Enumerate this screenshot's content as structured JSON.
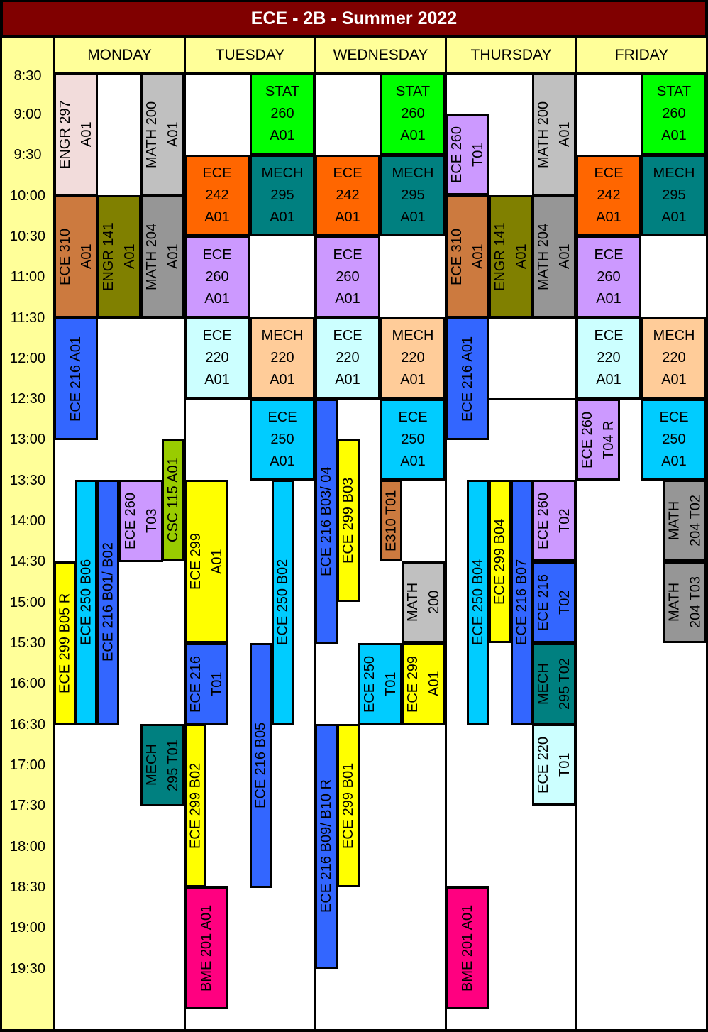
{
  "title": "ECE - 2B - Summer 2022",
  "days": [
    "MONDAY",
    "TUESDAY",
    "WEDNESDAY",
    "THURSDAY",
    "FRIDAY"
  ],
  "times": [
    "8:30",
    "9:00",
    "9:30",
    "10:00",
    "10:30",
    "11:00",
    "11:30",
    "12:00",
    "12:30",
    "13:00",
    "13:30",
    "14:00",
    "14:30",
    "15:00",
    "15:30",
    "16:00",
    "16:30",
    "17:00",
    "17:30",
    "18:00",
    "18:30",
    "19:00",
    "19:30"
  ],
  "colors": {
    "title_bg": "#800000",
    "header_bg": "#ffff99",
    "ecc_pink": "#f2dcdb",
    "gray_light": "#c0c0c0",
    "gray": "#969696",
    "green": "#00ff00",
    "orange": "#ff6600",
    "teal": "#008080",
    "lavender": "#cc99ff",
    "brown": "#cc7a3f",
    "olive": "#808000",
    "blue": "#3366ff",
    "cyan_light": "#ccffff",
    "peach": "#ffcc99",
    "sky": "#00ccff",
    "yellow": "#ffff00",
    "lime": "#99cc00",
    "magenta": "#ff0080"
  },
  "events": [
    {
      "text": "ENGR 297\nA01",
      "orient": "v",
      "color": "#f2dcdb"
    },
    {
      "text": "MATH 200\nA01",
      "orient": "v",
      "color": "#c0c0c0"
    },
    {
      "text": "ECE 310\nA01",
      "orient": "v",
      "color": "#cc7a3f"
    },
    {
      "text": "ENGR 141\nA01",
      "orient": "v",
      "color": "#808000"
    },
    {
      "text": "MATH 204\nA01",
      "orient": "v",
      "color": "#969696"
    },
    {
      "text": "ECE 216  A01",
      "orient": "v",
      "color": "#3366ff"
    },
    {
      "text": "CSC 115 A01",
      "orient": "v",
      "color": "#99cc00"
    },
    {
      "text": "ECE 260\nT03",
      "orient": "v",
      "color": "#cc99ff"
    },
    {
      "text": "ECE 299 B05 R",
      "orient": "v",
      "color": "#ffff00"
    },
    {
      "text": "ECE 250 B06",
      "orient": "v",
      "color": "#00ccff"
    },
    {
      "text": "ECE 216 B01/ B02",
      "orient": "v",
      "color": "#3366ff"
    },
    {
      "text": "MECH\n295  T01",
      "orient": "v",
      "color": "#008080"
    },
    {
      "text": "STAT\n260\nA01",
      "orient": "h",
      "color": "#00ff00"
    },
    {
      "text": "ECE\n242\nA01",
      "orient": "h",
      "color": "#ff6600"
    },
    {
      "text": "MECH\n295\nA01",
      "orient": "h",
      "color": "#008080"
    },
    {
      "text": "ECE\n260\nA01",
      "orient": "h",
      "color": "#cc99ff"
    },
    {
      "text": "ECE\n220\nA01",
      "orient": "h",
      "color": "#ccffff"
    },
    {
      "text": "MECH\n220\nA01",
      "orient": "h",
      "color": "#ffcc99"
    },
    {
      "text": "ECE\n250\nA01",
      "orient": "h",
      "color": "#00ccff"
    },
    {
      "text": "ECE 299\nA01",
      "orient": "v",
      "color": "#ffff00"
    },
    {
      "text": "ECE 250 B02",
      "orient": "v",
      "color": "#00ccff"
    },
    {
      "text": "ECE 216\nT01",
      "orient": "v",
      "color": "#3366ff"
    },
    {
      "text": "ECE 216 B05",
      "orient": "v",
      "color": "#3366ff"
    },
    {
      "text": "ECE 299 B02",
      "orient": "v",
      "color": "#ffff00"
    },
    {
      "text": "BME 201 A01",
      "orient": "v",
      "color": "#ff0080"
    },
    {
      "text": "STAT\n260\nA01",
      "orient": "h",
      "color": "#00ff00"
    },
    {
      "text": "ECE\n242\nA01",
      "orient": "h",
      "color": "#ff6600"
    },
    {
      "text": "MECH\n295\nA01",
      "orient": "h",
      "color": "#008080"
    },
    {
      "text": "ECE\n260\nA01",
      "orient": "h",
      "color": "#cc99ff"
    },
    {
      "text": "ECE\n220\nA01",
      "orient": "h",
      "color": "#ccffff"
    },
    {
      "text": "MECH\n220\nA01",
      "orient": "h",
      "color": "#ffcc99"
    },
    {
      "text": "ECE 216 B03/ 04",
      "orient": "v",
      "color": "#3366ff"
    },
    {
      "text": "ECE\n250\nA01",
      "orient": "h",
      "color": "#00ccff"
    },
    {
      "text": "ECE 299 B03",
      "orient": "v",
      "color": "#ffff00"
    },
    {
      "text": "E310 T01",
      "orient": "v",
      "color": "#cc7a3f"
    },
    {
      "text": "MATH\n200",
      "orient": "v",
      "color": "#c0c0c0"
    },
    {
      "text": "ECE 250\nT01",
      "orient": "v",
      "color": "#00ccff"
    },
    {
      "text": "ECE 299\nA01",
      "orient": "v",
      "color": "#ffff00"
    },
    {
      "text": "ECE 216 B09/ B10 R",
      "orient": "v",
      "color": "#3366ff"
    },
    {
      "text": "ECE 299 B01",
      "orient": "v",
      "color": "#ffff00"
    },
    {
      "text": "ECE 260\nT01",
      "orient": "v",
      "color": "#cc99ff"
    },
    {
      "text": "MATH 200\nA01",
      "orient": "v",
      "color": "#c0c0c0"
    },
    {
      "text": "ECE 310\nA01",
      "orient": "v",
      "color": "#cc7a3f"
    },
    {
      "text": "ENGR 141\nA01",
      "orient": "v",
      "color": "#808000"
    },
    {
      "text": "MATH 204\nA01",
      "orient": "v",
      "color": "#969696"
    },
    {
      "text": "ECE 216  A01",
      "orient": "v",
      "color": "#3366ff"
    },
    {
      "text": "ECE 250 B04",
      "orient": "v",
      "color": "#00ccff"
    },
    {
      "text": "ECE 299  B04",
      "orient": "v",
      "color": "#ffff00"
    },
    {
      "text": "ECE 216 B07",
      "orient": "v",
      "color": "#3366ff"
    },
    {
      "text": "ECE 260\nT02",
      "orient": "v",
      "color": "#cc99ff"
    },
    {
      "text": "ECE 216\nT02",
      "orient": "v",
      "color": "#3366ff"
    },
    {
      "text": "MECH\n295  T02",
      "orient": "v",
      "color": "#008080"
    },
    {
      "text": "ECE 220\nT01",
      "orient": "v",
      "color": "#ccffff"
    },
    {
      "text": "BME 201 A01",
      "orient": "v",
      "color": "#ff0080"
    },
    {
      "text": "STAT\n260\nA01",
      "orient": "h",
      "color": "#00ff00"
    },
    {
      "text": "ECE\n242\nA01",
      "orient": "h",
      "color": "#ff6600"
    },
    {
      "text": "MECH\n295\nA01",
      "orient": "h",
      "color": "#008080"
    },
    {
      "text": "ECE\n260\nA01",
      "orient": "h",
      "color": "#cc99ff"
    },
    {
      "text": "ECE\n220\nA01",
      "orient": "h",
      "color": "#ccffff"
    },
    {
      "text": "MECH\n220\nA01",
      "orient": "h",
      "color": "#ffcc99"
    },
    {
      "text": "ECE 260\nT04 R",
      "orient": "v",
      "color": "#cc99ff"
    },
    {
      "text": "ECE\n250\nA01",
      "orient": "h",
      "color": "#00ccff"
    },
    {
      "text": "MATH\n204  T02",
      "orient": "v",
      "color": "#969696"
    },
    {
      "text": "MATH\n204  T03",
      "orient": "v",
      "color": "#969696"
    }
  ]
}
